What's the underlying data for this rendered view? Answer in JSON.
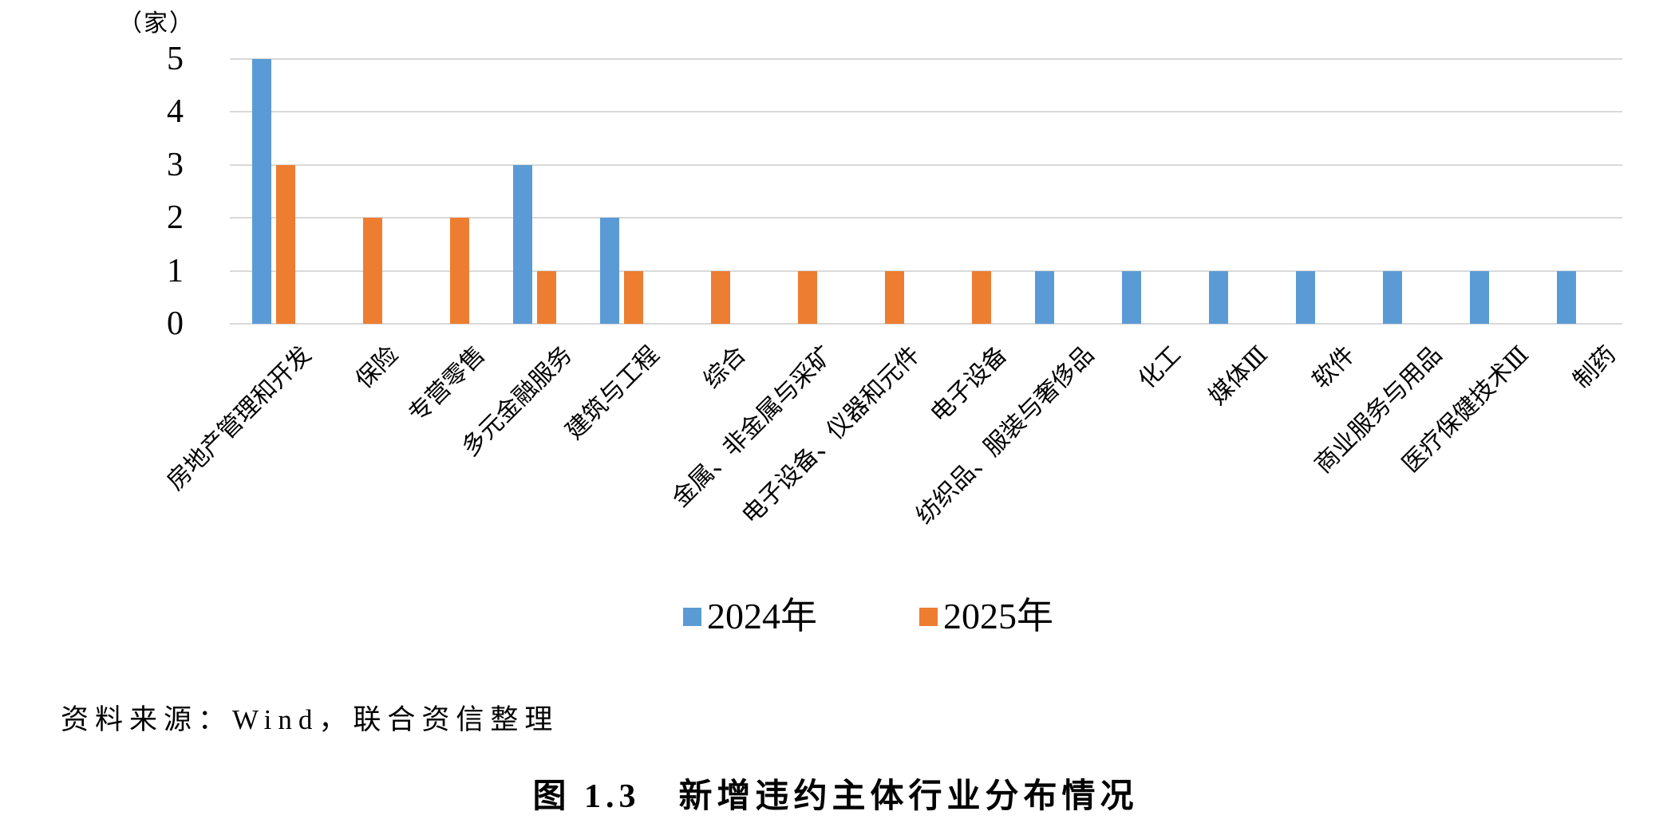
{
  "chart_data": {
    "type": "bar",
    "unit_label": "（家）",
    "categories": [
      "房地产管理和开发",
      "保险",
      "专营零售",
      "多元金融服务",
      "建筑与工程",
      "综合",
      "金属、非金属与采矿",
      "电子设备、仪器和元件",
      "电子设备",
      "纺织品、服装与奢侈品",
      "化工",
      "媒体Ⅲ",
      "软件",
      "商业服务与用品",
      "医疗保健技术Ⅲ",
      "制药"
    ],
    "series": [
      {
        "name": "2024年",
        "color": "#5B9BD5",
        "values": [
          5,
          0,
          0,
          3,
          2,
          0,
          0,
          0,
          0,
          1,
          1,
          1,
          1,
          1,
          1,
          1
        ]
      },
      {
        "name": "2025年",
        "color": "#ED7D31",
        "values": [
          3,
          2,
          2,
          1,
          1,
          1,
          1,
          1,
          1,
          0,
          0,
          0,
          0,
          0,
          0,
          0
        ]
      }
    ],
    "y_ticks": [
      0,
      1,
      2,
      3,
      4,
      5
    ],
    "ylim": [
      0,
      5
    ],
    "grid": true,
    "gridline_color": "#D9D9D9",
    "legend_position": "bottom-center"
  },
  "source_note": "资料来源：Wind，联合资信整理",
  "caption": "图 1.3　新增违约主体行业分布情况"
}
